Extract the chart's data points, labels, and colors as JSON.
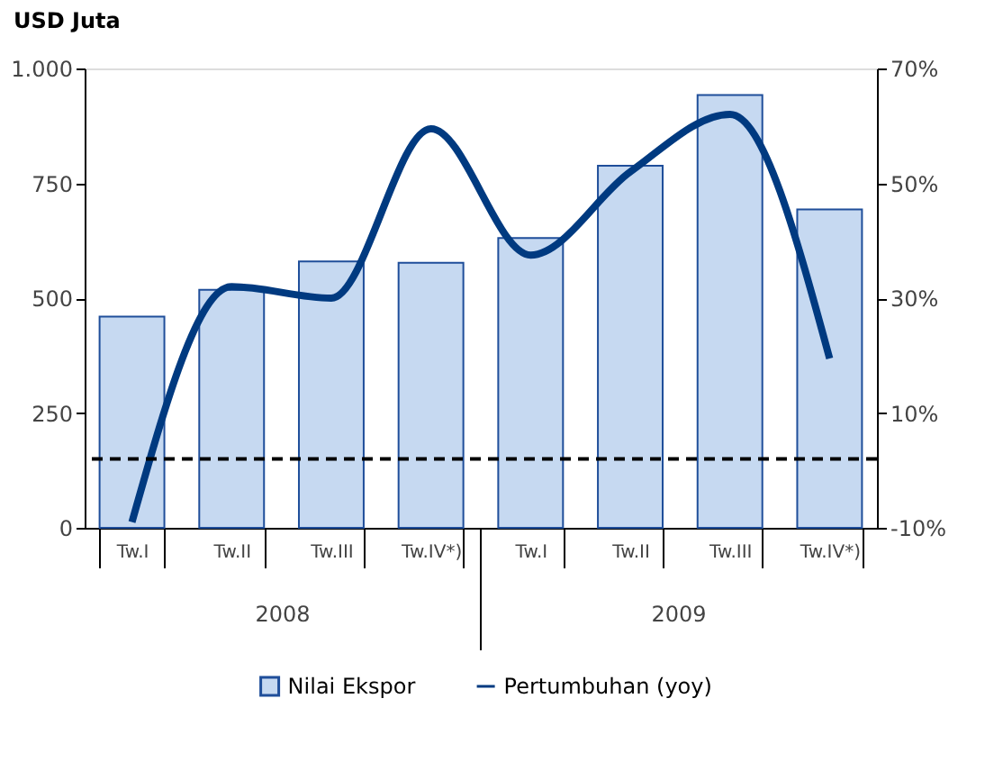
{
  "chart_data": {
    "type": "bar",
    "ylabel": "USD Juta",
    "categories": [
      "Tw.I",
      "Tw.II",
      "Tw.III",
      "Tw.IV*)",
      "Tw.I",
      "Tw.II",
      "Tw.III",
      "Tw.IV*)"
    ],
    "series": [
      {
        "name": "Nilai Ekspor",
        "color": "#c6d9f1",
        "values": [
          460,
          518,
          580,
          577,
          631,
          788,
          942,
          693
        ]
      },
      {
        "name": "Pertumbuhan (yoy)",
        "type": "line",
        "axis": "y2",
        "color": "#003a80",
        "values": [
          -9,
          32,
          30,
          59.5,
          37.5,
          52,
          62,
          19.5
        ]
      }
    ],
    "ylim": [
      0,
      1000
    ],
    "yticks": [
      0,
      250,
      500,
      750,
      {
        "value": 1000,
        "label": "1.000"
      }
    ],
    "y2lim": [
      -10,
      70
    ],
    "y2ticks": [
      {
        "value": -10,
        "label": "-10%"
      },
      {
        "value": 10,
        "label": "10%"
      },
      {
        "value": 30,
        "label": "30%"
      },
      {
        "value": 50,
        "label": "50%"
      },
      {
        "value": 70,
        "label": "70%"
      }
    ],
    "ref_lines": [
      {
        "axis": "y2",
        "value": 2,
        "color": "#000000",
        "line_style": "dashed"
      }
    ],
    "annotations": [
      "2008",
      "2009"
    ],
    "grid": false,
    "legend": "bottom",
    "marker": "none",
    "line_style": "solid"
  }
}
